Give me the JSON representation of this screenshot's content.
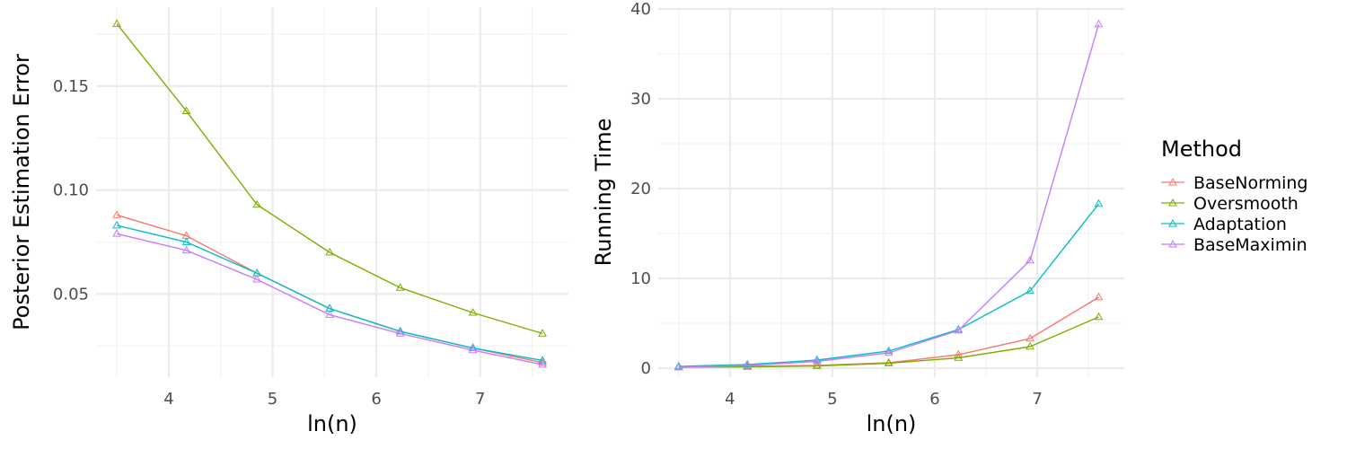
{
  "legend": {
    "title": "Method",
    "items": [
      {
        "name": "BaseNorming",
        "color": "#F8766D"
      },
      {
        "name": "Oversmooth",
        "color": "#7CAE00"
      },
      {
        "name": "Adaptation",
        "color": "#00BFC4"
      },
      {
        "name": "BaseMaximin",
        "color": "#C77CFF"
      }
    ]
  },
  "chart_data": [
    {
      "type": "line",
      "marker": "triangle-open",
      "xlabel": "ln(n)",
      "ylabel": "Posterior Estimation Error",
      "xlim": [
        3.3,
        7.85
      ],
      "ylim": [
        0.01,
        0.188
      ],
      "xticks": [
        4,
        5,
        6,
        7
      ],
      "xtick_labels": [
        "4",
        "5",
        "6",
        "7"
      ],
      "yticks": [
        0.05,
        0.1,
        0.15
      ],
      "ytick_labels": [
        "0.05",
        "0.10",
        "0.15"
      ],
      "x": [
        3.5,
        4.17,
        4.85,
        5.55,
        6.23,
        6.93,
        7.6
      ],
      "series": [
        {
          "name": "BaseNorming",
          "values": [
            0.088,
            0.078,
            0.06,
            0.043,
            0.032,
            0.024,
            0.017
          ]
        },
        {
          "name": "Oversmooth",
          "values": [
            0.18,
            0.138,
            0.093,
            0.07,
            0.053,
            0.041,
            0.031
          ]
        },
        {
          "name": "Adaptation",
          "values": [
            0.083,
            0.075,
            0.06,
            0.043,
            0.032,
            0.024,
            0.018
          ]
        },
        {
          "name": "BaseMaximin",
          "values": [
            0.079,
            0.071,
            0.057,
            0.04,
            0.031,
            0.023,
            0.016
          ]
        }
      ],
      "grid": true
    },
    {
      "type": "line",
      "marker": "triangle-open",
      "xlabel": "ln(n)",
      "ylabel": "Running Time",
      "xlim": [
        3.3,
        7.85
      ],
      "ylim": [
        -1.0,
        40.2
      ],
      "xticks": [
        4,
        5,
        6,
        7
      ],
      "xtick_labels": [
        "4",
        "5",
        "6",
        "7"
      ],
      "yticks": [
        0,
        10,
        20,
        30,
        40
      ],
      "ytick_labels": [
        "0",
        "10",
        "20",
        "30",
        "40"
      ],
      "x": [
        3.5,
        4.17,
        4.85,
        5.55,
        6.23,
        6.93,
        7.6
      ],
      "series": [
        {
          "name": "BaseNorming",
          "values": [
            0.1,
            0.2,
            0.3,
            0.6,
            1.5,
            3.3,
            7.9
          ]
        },
        {
          "name": "Oversmooth",
          "values": [
            0.1,
            0.15,
            0.25,
            0.55,
            1.15,
            2.4,
            5.7
          ]
        },
        {
          "name": "Adaptation",
          "values": [
            0.2,
            0.4,
            0.9,
            1.9,
            4.3,
            8.6,
            18.3
          ]
        },
        {
          "name": "BaseMaximin",
          "values": [
            0.1,
            0.3,
            0.75,
            1.7,
            4.2,
            12.0,
            38.3
          ]
        }
      ],
      "grid": true
    }
  ]
}
